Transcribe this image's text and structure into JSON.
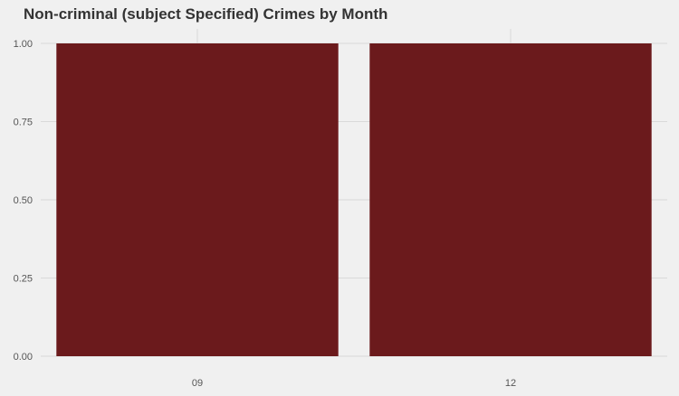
{
  "chart_data": {
    "type": "bar",
    "title": "Non-criminal (subject Specified) Crimes by Month",
    "xlabel": "",
    "ylabel": "",
    "categories": [
      "09",
      "12"
    ],
    "values": [
      1,
      1
    ],
    "ylim": [
      0,
      1
    ],
    "yticks": [
      "0.00",
      "0.25",
      "0.50",
      "0.75",
      "1.00"
    ],
    "grid": true,
    "legend": "none",
    "colors": {
      "bar": "#6b1a1c",
      "background": "#f0f0f0",
      "grid": "#d9d9d9",
      "text": "#333333"
    }
  }
}
